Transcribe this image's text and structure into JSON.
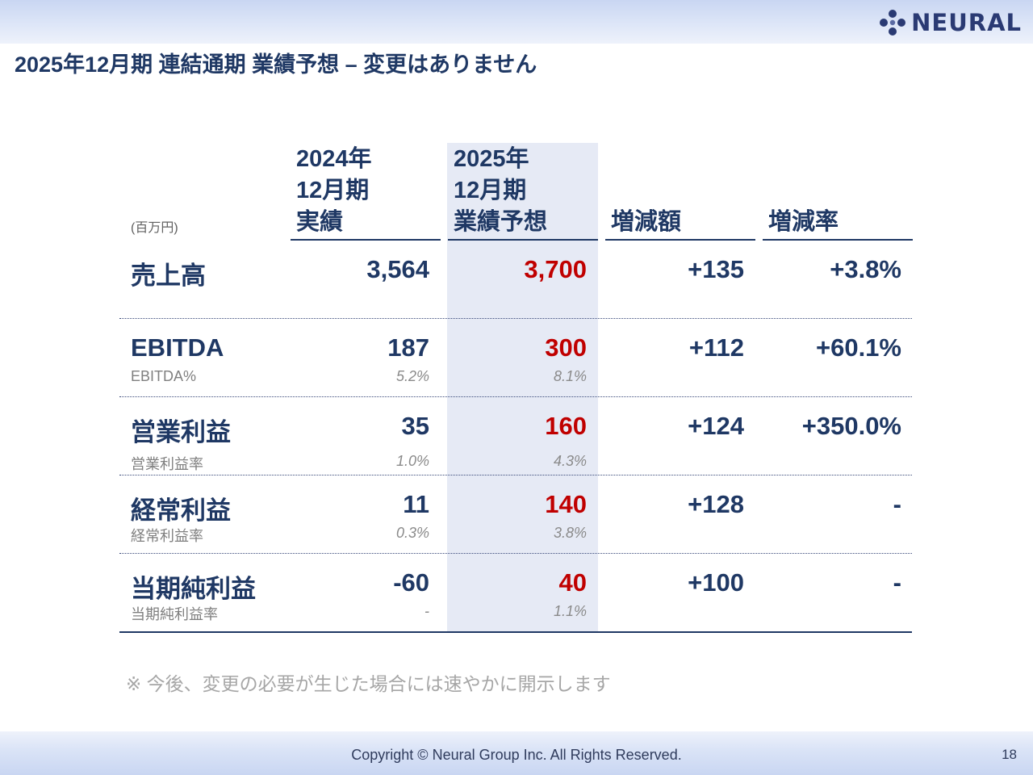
{
  "header": {
    "logo_text": "NEURAL",
    "title": "2025年12月期 連結通期 業績予想 – 変更はありません"
  },
  "table": {
    "unit": "(百万円)",
    "columns": {
      "actual": [
        "2024年",
        "12月期",
        "実績"
      ],
      "forecast": [
        "2025年",
        "12月期",
        "業績予想"
      ],
      "diff": "増減額",
      "rate": "増減率"
    },
    "rows": [
      {
        "label": "売上高",
        "actual": "3,564",
        "forecast": "3,700",
        "diff": "+135",
        "rate": "+3.8%"
      },
      {
        "label": "EBITDA",
        "actual": "187",
        "forecast": "300",
        "diff": "+112",
        "rate": "+60.1%",
        "sub_label": "EBITDA%",
        "sub_actual": "5.2%",
        "sub_forecast": "8.1%"
      },
      {
        "label": "営業利益",
        "actual": "35",
        "forecast": "160",
        "diff": "+124",
        "rate": "+350.0%",
        "sub_label": "営業利益率",
        "sub_actual": "1.0%",
        "sub_forecast": "4.3%"
      },
      {
        "label": "経常利益",
        "actual": "11",
        "forecast": "140",
        "diff": "+128",
        "rate": "-",
        "sub_label": "経常利益率",
        "sub_actual": "0.3%",
        "sub_forecast": "3.8%"
      },
      {
        "label": "当期純利益",
        "actual": "-60",
        "forecast": "40",
        "diff": "+100",
        "rate": "-",
        "sub_label": "当期純利益率",
        "sub_actual": "-",
        "sub_forecast": "1.1%"
      }
    ]
  },
  "note": "※ 今後、変更の必要が生じた場合には速やかに開示します",
  "footer": {
    "copyright": "Copyright © Neural Group Inc. All Rights Reserved.",
    "page": "18"
  },
  "colors": {
    "navy": "#1f3864",
    "forecast_red": "#c00000",
    "forecast_column_bg": "#e6eaf5"
  }
}
